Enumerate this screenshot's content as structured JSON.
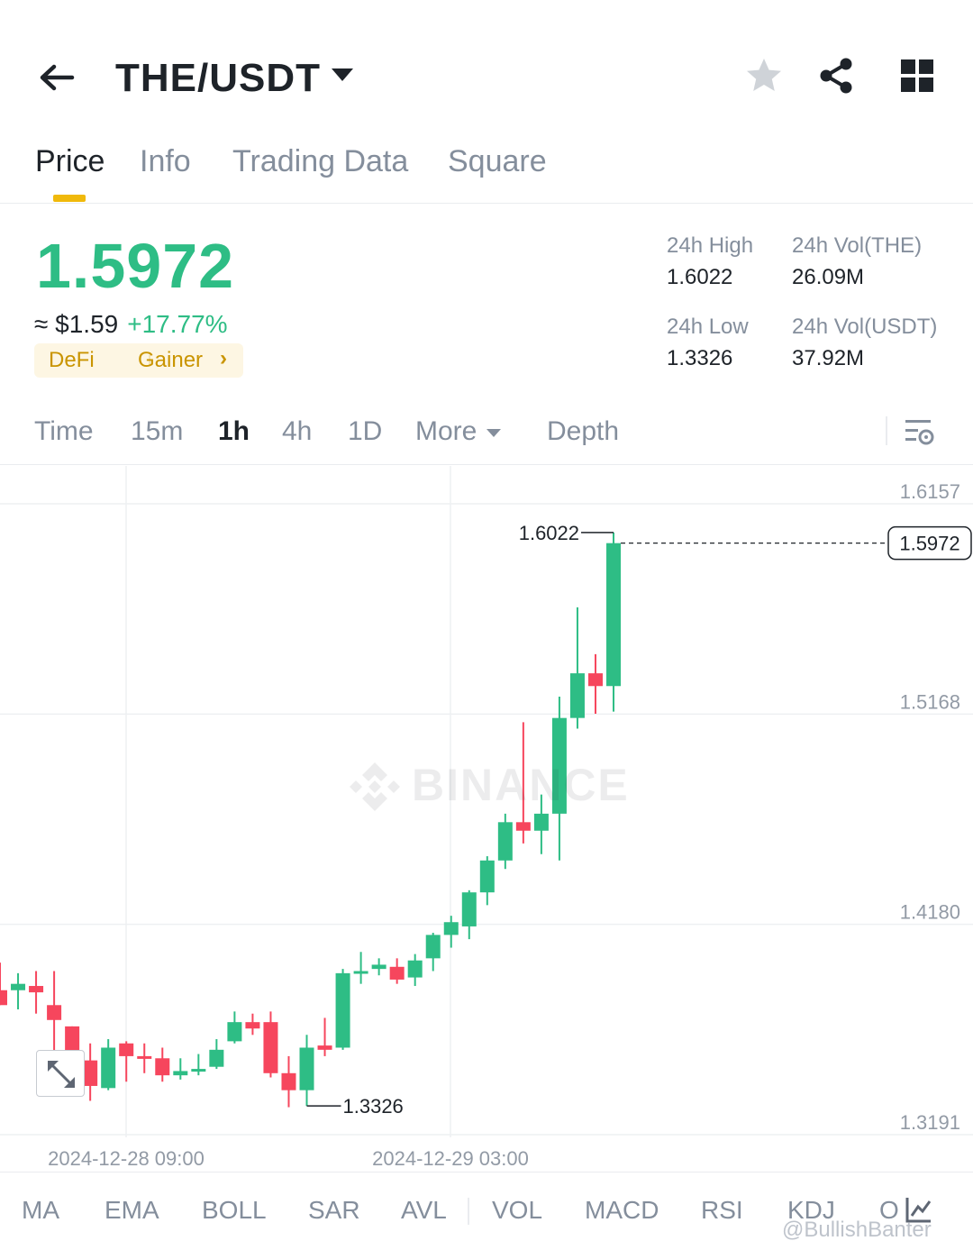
{
  "header": {
    "pair": "THE/USDT",
    "icons": [
      "back-arrow-icon",
      "chevron-down-icon",
      "star-icon",
      "share-icon",
      "grid-icon"
    ]
  },
  "tabs": [
    {
      "label": "Price",
      "active": true
    },
    {
      "label": "Info",
      "active": false
    },
    {
      "label": "Trading Data",
      "active": false
    },
    {
      "label": "Square",
      "active": false
    }
  ],
  "price": {
    "last": "1.5972",
    "fiat": "≈ $1.59",
    "change": "+17.77%",
    "tags": [
      "DeFi",
      "Gainer"
    ],
    "up_color": "#2ebd85",
    "down_color": "#f6465d"
  },
  "stats": {
    "high_label": "24h High",
    "high": "1.6022",
    "low_label": "24h Low",
    "low": "1.3326",
    "vol_base_label": "24h Vol(THE)",
    "vol_base": "26.09M",
    "vol_quote_label": "24h Vol(USDT)",
    "vol_quote": "37.92M"
  },
  "intervals": {
    "items": [
      "Time",
      "15m",
      "1h",
      "4h",
      "1D",
      "More"
    ],
    "active": "1h",
    "depth": "Depth"
  },
  "chart_data": {
    "type": "candlestick",
    "y_ticks": [
      "1.6157",
      "1.5168",
      "1.4180",
      "1.3191"
    ],
    "x_ticks": [
      "2024-12-28 09:00",
      "2024-12-29 03:00"
    ],
    "high_marker": "1.6022",
    "low_marker": "1.3326",
    "last_price": "1.5972",
    "watermark": "BINANCE",
    "candles": [
      {
        "o": 1.387,
        "h": 1.4,
        "l": 1.38,
        "c": 1.38
      },
      {
        "o": 1.387,
        "h": 1.395,
        "l": 1.378,
        "c": 1.39
      },
      {
        "o": 1.389,
        "h": 1.396,
        "l": 1.376,
        "c": 1.386
      },
      {
        "o": 1.38,
        "h": 1.396,
        "l": 1.354,
        "c": 1.373
      },
      {
        "o": 1.37,
        "h": 1.37,
        "l": 1.339,
        "c": 1.351
      },
      {
        "o": 1.354,
        "h": 1.362,
        "l": 1.335,
        "c": 1.342
      },
      {
        "o": 1.341,
        "h": 1.364,
        "l": 1.34,
        "c": 1.36
      },
      {
        "o": 1.362,
        "h": 1.363,
        "l": 1.344,
        "c": 1.356
      },
      {
        "o": 1.356,
        "h": 1.362,
        "l": 1.348,
        "c": 1.355
      },
      {
        "o": 1.355,
        "h": 1.36,
        "l": 1.344,
        "c": 1.347
      },
      {
        "o": 1.347,
        "h": 1.355,
        "l": 1.345,
        "c": 1.349
      },
      {
        "o": 1.349,
        "h": 1.357,
        "l": 1.347,
        "c": 1.35
      },
      {
        "o": 1.351,
        "h": 1.364,
        "l": 1.35,
        "c": 1.359
      },
      {
        "o": 1.363,
        "h": 1.377,
        "l": 1.362,
        "c": 1.372
      },
      {
        "o": 1.372,
        "h": 1.376,
        "l": 1.366,
        "c": 1.369
      },
      {
        "o": 1.372,
        "h": 1.377,
        "l": 1.346,
        "c": 1.348
      },
      {
        "o": 1.348,
        "h": 1.356,
        "l": 1.332,
        "c": 1.34
      },
      {
        "o": 1.34,
        "h": 1.366,
        "l": 1.3326,
        "c": 1.36
      },
      {
        "o": 1.361,
        "h": 1.374,
        "l": 1.356,
        "c": 1.359
      },
      {
        "o": 1.36,
        "h": 1.397,
        "l": 1.359,
        "c": 1.395
      },
      {
        "o": 1.395,
        "h": 1.405,
        "l": 1.39,
        "c": 1.396
      },
      {
        "o": 1.397,
        "h": 1.402,
        "l": 1.394,
        "c": 1.399
      },
      {
        "o": 1.398,
        "h": 1.402,
        "l": 1.39,
        "c": 1.392
      },
      {
        "o": 1.393,
        "h": 1.404,
        "l": 1.389,
        "c": 1.401
      },
      {
        "o": 1.402,
        "h": 1.414,
        "l": 1.396,
        "c": 1.413
      },
      {
        "o": 1.413,
        "h": 1.422,
        "l": 1.407,
        "c": 1.419
      },
      {
        "o": 1.417,
        "h": 1.434,
        "l": 1.411,
        "c": 1.433
      },
      {
        "o": 1.433,
        "h": 1.45,
        "l": 1.427,
        "c": 1.448
      },
      {
        "o": 1.448,
        "h": 1.47,
        "l": 1.444,
        "c": 1.466
      },
      {
        "o": 1.466,
        "h": 1.513,
        "l": 1.456,
        "c": 1.462
      },
      {
        "o": 1.462,
        "h": 1.479,
        "l": 1.451,
        "c": 1.47
      },
      {
        "o": 1.47,
        "h": 1.525,
        "l": 1.448,
        "c": 1.515
      },
      {
        "o": 1.515,
        "h": 1.567,
        "l": 1.51,
        "c": 1.536
      },
      {
        "o": 1.536,
        "h": 1.545,
        "l": 1.517,
        "c": 1.53
      },
      {
        "o": 1.53,
        "h": 1.6022,
        "l": 1.518,
        "c": 1.5972
      }
    ]
  },
  "indicators": [
    "MA",
    "EMA",
    "BOLL",
    "SAR",
    "AVL",
    "VOL",
    "MACD",
    "RSI",
    "KDJ",
    "O"
  ],
  "credit": "@BullishBanter"
}
